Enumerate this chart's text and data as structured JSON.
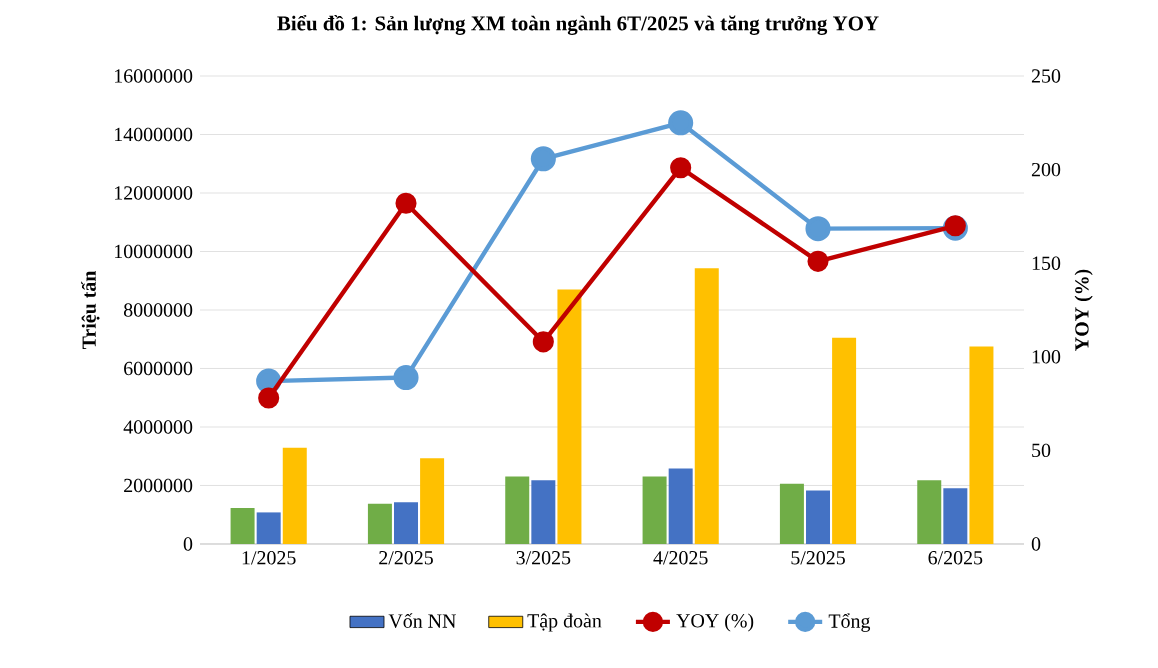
{
  "chart_data": {
    "type": "bar",
    "title": "Biểu đồ 1: Sản lượng XM toàn ngành 6T/2025 và tăng trưởng YOY",
    "categories": [
      "1/2025",
      "2/2025",
      "3/2025",
      "4/2025",
      "5/2025",
      "6/2025"
    ],
    "series": [
      {
        "color": "#70ad47",
        "values": [
          1230000,
          1380000,
          2310000,
          2310000,
          2060000,
          2180000
        ]
      },
      {
        "name": "Vốn NN",
        "color": "#4472c4",
        "values": [
          1080000,
          1430000,
          2180000,
          2580000,
          1830000,
          1910000
        ]
      },
      {
        "name": "Tập đoàn",
        "color": "#ffc000",
        "values": [
          3290000,
          2930000,
          8700000,
          9430000,
          7050000,
          6750000
        ]
      },
      {
        "name": "YOY (%)",
        "type": "line",
        "axis": "y2",
        "color": "#c00000",
        "values": [
          78,
          182,
          108,
          201,
          151,
          170
        ]
      },
      {
        "name": "Tổng",
        "type": "line",
        "color": "#5b9bd5",
        "values": [
          5570000,
          5690000,
          13170000,
          14400000,
          10780000,
          10800000
        ]
      }
    ],
    "ylabel": "Triệu tấn",
    "y2label": "YOY (%)",
    "ylim": [
      0,
      16000000
    ],
    "yticks": [
      0,
      2000000,
      4000000,
      6000000,
      8000000,
      10000000,
      12000000,
      14000000,
      16000000
    ],
    "y2lim": [
      0,
      250
    ],
    "y2ticks": [
      0,
      50,
      100,
      150,
      200,
      250
    ],
    "grid": "y",
    "legend": "bottom",
    "marker": "circle",
    "line_style": "solid"
  }
}
